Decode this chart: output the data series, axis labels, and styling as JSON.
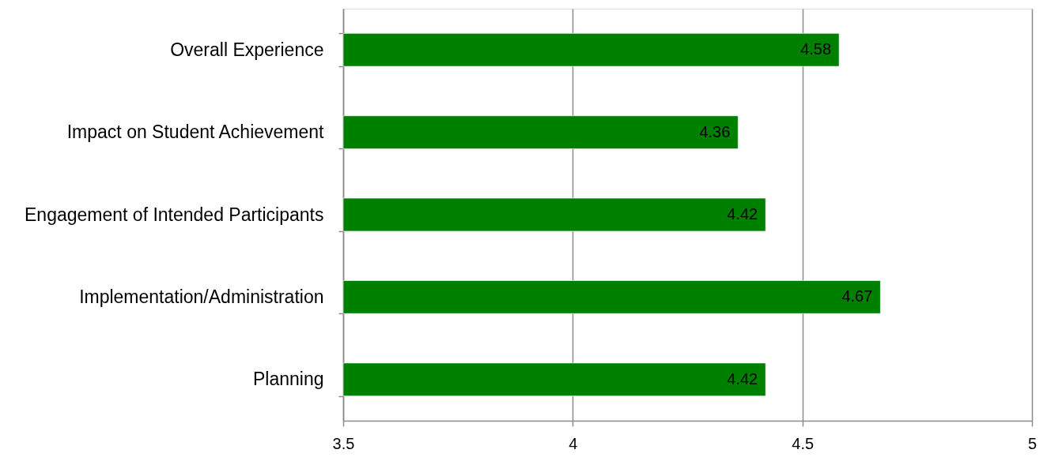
{
  "chart_data": {
    "type": "bar",
    "orientation": "horizontal",
    "categories": [
      "Overall Experience",
      "Impact on Student Achievement",
      "Engagement of Intended Participants",
      "Implementation/Administration",
      "Planning"
    ],
    "values": [
      4.58,
      4.36,
      4.42,
      4.67,
      4.42
    ],
    "color": "#008000",
    "xlim": [
      3.5,
      5
    ],
    "xticks": [
      3.5,
      4,
      4.5,
      5
    ],
    "grid": "x",
    "data_labels": true
  }
}
